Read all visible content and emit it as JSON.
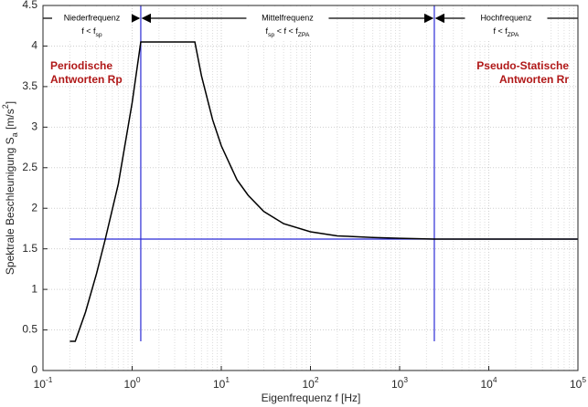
{
  "chart_data": {
    "type": "line",
    "x_label": "Eigenfrequenz f [Hz]",
    "y_label": [
      {
        "text": "Spektrale Beschleunigung S"
      },
      {
        "text": "a",
        "style": "sub"
      },
      {
        "text": "  [m/s"
      },
      {
        "text": "2",
        "style": "sup"
      },
      {
        "text": "]"
      }
    ],
    "x_scale": "log",
    "xlim": [
      0.1,
      100000
    ],
    "ylim": [
      0,
      4.5
    ],
    "xticks": [
      {
        "value": 0.1,
        "label": "10",
        "exponent": "-1"
      },
      {
        "value": 1,
        "label": "10",
        "exponent": "0"
      },
      {
        "value": 10,
        "label": "10",
        "exponent": "1"
      },
      {
        "value": 100,
        "label": "10",
        "exponent": "2"
      },
      {
        "value": 1000,
        "label": "10",
        "exponent": "3"
      },
      {
        "value": 10000,
        "label": "10",
        "exponent": "4"
      },
      {
        "value": 100000,
        "label": "10",
        "exponent": "5"
      }
    ],
    "yticks": [
      0,
      0.5,
      1,
      1.5,
      2,
      2.5,
      3,
      3.5,
      4,
      4.5
    ],
    "grid": true,
    "series": [
      {
        "color": "#000000",
        "x": [
          0.2,
          0.23,
          0.3,
          0.4,
          0.5,
          0.7,
          1.0,
          1.25,
          5.05,
          6,
          8,
          10,
          15,
          20,
          30,
          50,
          100,
          200,
          500,
          1000,
          2450,
          100000
        ],
        "values": [
          0.36,
          0.36,
          0.72,
          1.2,
          1.62,
          2.3,
          3.3,
          4.05,
          4.05,
          3.63,
          3.09,
          2.77,
          2.35,
          2.16,
          1.96,
          1.81,
          1.71,
          1.66,
          1.64,
          1.63,
          1.62,
          1.62
        ]
      }
    ],
    "reference_color": "#2b2bd6",
    "vlines": [
      {
        "x": 1.25,
        "ymin": 0.36,
        "ymax": 4.5
      },
      {
        "x": 2450,
        "ymin": 0.36,
        "ymax": 4.5
      }
    ],
    "hline": {
      "y": 1.62,
      "xmin": 0.2,
      "xmax": 100000
    },
    "regions": [
      {
        "title": "Niederfrequenz",
        "condition": [
          {
            "text": "f < f"
          },
          {
            "text": "sp",
            "style": "sub"
          }
        ]
      },
      {
        "title": "Mittelfrequenz",
        "condition": [
          {
            "text": "f"
          },
          {
            "text": "sp",
            "style": "sub"
          },
          {
            "text": " < f < f"
          },
          {
            "text": "ZPA",
            "style": "sub"
          }
        ]
      },
      {
        "title": "Hochfrequenz",
        "condition": [
          {
            "text": "f < f"
          },
          {
            "text": "ZPA",
            "style": "sub"
          }
        ]
      }
    ],
    "notes": [
      {
        "lines": [
          "Periodische",
          "Antworten Rp"
        ],
        "color": "#b01818"
      },
      {
        "lines": [
          "Pseudo-Statische",
          "Antworten Rr"
        ],
        "color": "#b01818"
      }
    ]
  }
}
